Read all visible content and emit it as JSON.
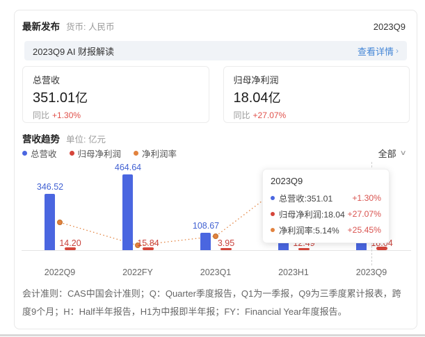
{
  "header": {
    "title": "最新发布",
    "currency_label": "货币: 人民币",
    "period": "2023Q9"
  },
  "banner": {
    "text": "2023Q9 AI 财报解读",
    "link_label": "查看详情",
    "chevron": "›"
  },
  "summary_cards": [
    {
      "title": "总营收",
      "value": "351.01",
      "unit": "亿",
      "yoy_label": "同比",
      "yoy": "+1.30%"
    },
    {
      "title": "归母净利润",
      "value": "18.04",
      "unit": "亿",
      "yoy_label": "同比",
      "yoy": "+27.07%"
    }
  ],
  "trend_section": {
    "title": "营收趋势",
    "unit_label": "单位: 亿元",
    "range_selector": "全部",
    "chevron": "∨"
  },
  "legend": {
    "items": [
      {
        "label": "总营收",
        "color": "#4a66e0"
      },
      {
        "label": "归母净利润",
        "color": "#d5453a"
      },
      {
        "label": "净利润率",
        "color": "#e2823e"
      }
    ]
  },
  "chart_data": {
    "type": "bar",
    "categories": [
      "2022Q9",
      "2022FY",
      "2023Q1",
      "2023H1",
      "2023Q9"
    ],
    "series": [
      {
        "name": "总营收",
        "type": "bar",
        "color": "#4a66e0",
        "unit": "亿元",
        "values": [
          346.52,
          464.64,
          108.67,
          null,
          351.01
        ],
        "value_labels": [
          "346.52",
          "464.64",
          "108.67",
          null,
          "351.01"
        ]
      },
      {
        "name": "归母净利润",
        "type": "bar",
        "color": "#d5453a",
        "unit": "亿元",
        "values": [
          14.2,
          15.84,
          3.95,
          12.49,
          18.04
        ],
        "value_labels": [
          "14.20",
          "15.84",
          "3.95",
          "12.49",
          "18.04"
        ]
      },
      {
        "name": "净利润率",
        "type": "line",
        "style": "dotted",
        "color": "#e2823e",
        "unit": "%",
        "visible_values": {
          "2023Q9": 5.14
        }
      }
    ],
    "title": "营收趋势",
    "ylabel": "亿元",
    "grid": false,
    "legend_position": "top-left"
  },
  "tooltip": {
    "title": "2023Q9",
    "rows": [
      {
        "label": "总营收:351.01",
        "change": "+1.30%",
        "color": "#4a66e0"
      },
      {
        "label": "归母净利润:18.04",
        "change": "+27.07%",
        "color": "#d5453a"
      },
      {
        "label": "净利润率:5.14%",
        "change": "+25.45%",
        "color": "#e2823e"
      }
    ]
  },
  "footnote": "会计准则：CAS中国会计准则；Q：Quarter季度报告，Q1为一季报，Q9为三季度累计报表，跨度9个月；H：Half半年报告，H1为中报即半年报；FY：Financial Year年度报告。"
}
